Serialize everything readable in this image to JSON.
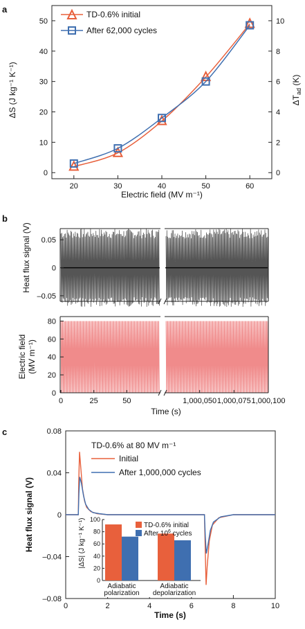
{
  "panels": {
    "a": "a",
    "b": "b",
    "c": "c"
  },
  "colors": {
    "red": "#e8603c",
    "blue": "#3f6fb0",
    "black": "#111111",
    "pink": "#f08b8b",
    "gray": "#555555"
  },
  "chart_data": [
    {
      "id": "a",
      "type": "line",
      "x": [
        20,
        30,
        40,
        50,
        60
      ],
      "xlabel": "Electric field (MV m⁻¹)",
      "ylabel": "ΔS (J kg⁻¹ K⁻¹)",
      "y2label": "ΔT_ad (K)",
      "xlim": [
        15,
        65
      ],
      "ylim": [
        -2,
        55
      ],
      "y2lim": [
        -0.4,
        11
      ],
      "xticks": [
        20,
        30,
        40,
        50,
        60
      ],
      "yticks": [
        0,
        10,
        20,
        30,
        40,
        50
      ],
      "y2ticks": [
        0,
        2,
        4,
        6,
        8,
        10
      ],
      "series": [
        {
          "name": "TD-0.6% initial",
          "marker": "triangle",
          "color": "#e8603c",
          "values": [
            2,
            6.5,
            17,
            31.5,
            49
          ]
        },
        {
          "name": "After 62,000 cycles",
          "marker": "square",
          "color": "#3f6fb0",
          "values": [
            3,
            8,
            18,
            30,
            48.5
          ]
        }
      ],
      "legend": "top-left"
    },
    {
      "id": "b-top",
      "type": "line",
      "ylabel": "Heat flux signal (V)",
      "ylim": [
        -0.06,
        0.07
      ],
      "yticks": [
        0.05,
        0,
        -0.05
      ],
      "ytick_labels": [
        "0.05",
        "0",
        "–0.05"
      ],
      "amplitude": 0.07,
      "axis_break": true
    },
    {
      "id": "b-bottom",
      "type": "line",
      "ylabel": "Electric field (MV m⁻¹)",
      "ylim": [
        0,
        85
      ],
      "yticks": [
        80,
        60,
        40,
        20,
        0
      ],
      "range": [
        0,
        80
      ],
      "xlabel": "Time (s)",
      "xtick_labels_left": [
        "0",
        "25",
        "50"
      ],
      "xticks_left": [
        0,
        25,
        50
      ],
      "xtick_labels_right": [
        "1,000,050",
        "1,000,075",
        "1,000,100"
      ],
      "xticks_right": [
        1000050,
        1000075,
        1000100
      ],
      "axis_break": true
    },
    {
      "id": "c",
      "type": "line",
      "title": "TD-0.6% at 80 MV m⁻¹",
      "xlabel": "Time (s)",
      "ylabel": "Heat flux signal (V)",
      "xlim": [
        0,
        10
      ],
      "ylim": [
        -0.08,
        0.08
      ],
      "xticks": [
        0,
        2,
        4,
        6,
        8,
        10
      ],
      "yticks": [
        0.08,
        0.04,
        0,
        -0.04,
        -0.08
      ],
      "ytick_labels": [
        "0.08",
        "0.04",
        "0",
        "–0.04",
        "–0.08"
      ],
      "series": [
        {
          "name": "Initial",
          "color": "#e8603c",
          "x": [
            0,
            0.6,
            0.62,
            0.66,
            0.72,
            0.8,
            0.9,
            1.0,
            1.2,
            1.5,
            2.0,
            3,
            6.62,
            6.66,
            6.7,
            6.75,
            6.85,
            7.0,
            7.3,
            8,
            10
          ],
          "y": [
            0,
            0,
            0.03,
            0.06,
            0.045,
            0.025,
            0.013,
            0.007,
            0.003,
            0.001,
            0,
            0,
            0,
            -0.035,
            -0.067,
            -0.05,
            -0.025,
            -0.01,
            -0.003,
            0,
            0
          ]
        },
        {
          "name": "After 1,000,000 cycles",
          "color": "#3f6fb0",
          "x": [
            0,
            0.6,
            0.63,
            0.67,
            0.75,
            0.85,
            0.95,
            1.1,
            1.3,
            1.6,
            2.0,
            3,
            6.62,
            6.66,
            6.71,
            6.78,
            6.9,
            7.05,
            7.4,
            8,
            10
          ],
          "y": [
            0,
            0,
            0.02,
            0.036,
            0.03,
            0.018,
            0.01,
            0.005,
            0.002,
            0.001,
            0,
            0,
            0,
            -0.02,
            -0.037,
            -0.03,
            -0.015,
            -0.007,
            -0.002,
            0,
            0
          ]
        }
      ],
      "legend": "top"
    },
    {
      "id": "c-inset",
      "type": "bar",
      "categories": [
        "Adiabatic polarization",
        "Adiabatic depolarization"
      ],
      "category_lines": [
        [
          "Adiabatic",
          "polarization"
        ],
        [
          "Adiabatic",
          "depolarization"
        ]
      ],
      "ylabel": "|ΔS| (J kg⁻¹ K⁻¹)",
      "ylim": [
        0,
        100
      ],
      "yticks": [
        0,
        20,
        40,
        60,
        80,
        100
      ],
      "series": [
        {
          "name": "TD-0.6% initial",
          "color": "#e8603c",
          "values": [
            92,
            77
          ]
        },
        {
          "name": "After 10⁶ cycles",
          "color": "#3f6fb0",
          "values": [
            72,
            66
          ]
        }
      ]
    }
  ]
}
